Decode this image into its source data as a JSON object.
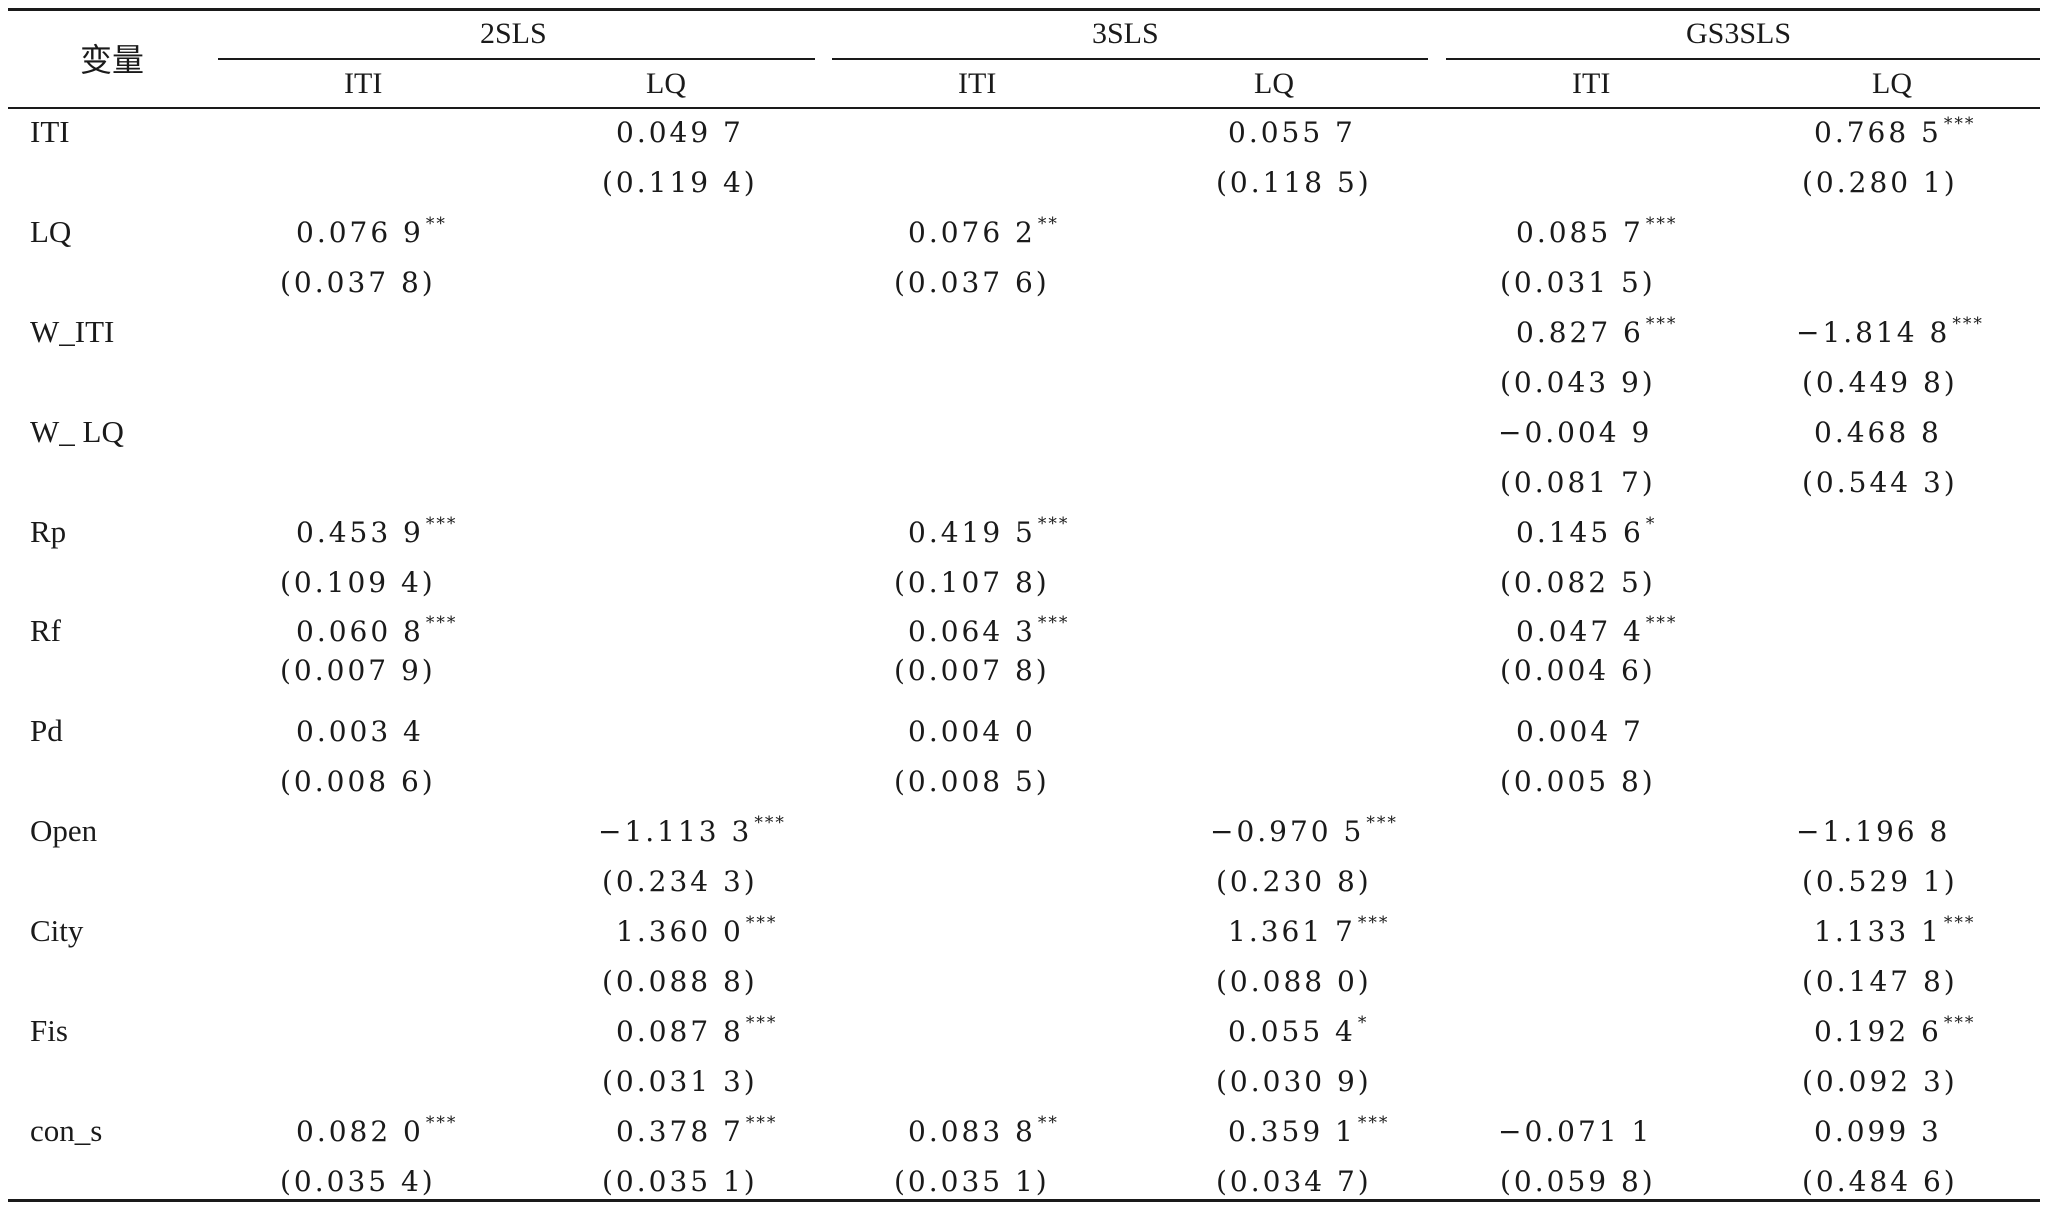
{
  "table": {
    "corner_label": "变量",
    "groups": [
      "2SLS",
      "3SLS",
      "GS3SLS"
    ],
    "subheaders": [
      "ITI",
      "LQ",
      "ITI",
      "LQ",
      "ITI",
      "LQ"
    ],
    "rows": [
      {
        "var": "ITI",
        "coef": [
          "",
          "0.049 7",
          "",
          "0.055 7",
          "",
          "0.768 5"
        ],
        "stars": [
          "",
          "",
          "",
          "",
          "",
          "***"
        ],
        "se": [
          "",
          "(0.119 4)",
          "",
          "(0.118 5)",
          "",
          "(0.280 1)"
        ]
      },
      {
        "var": "LQ",
        "coef": [
          "0.076 9",
          "",
          "0.076 2",
          "",
          "0.085 7",
          ""
        ],
        "stars": [
          "**",
          "",
          "**",
          "",
          "***",
          ""
        ],
        "se": [
          "(0.037 8)",
          "",
          "(0.037 6)",
          "",
          "(0.031 5)",
          ""
        ]
      },
      {
        "var": "W_ITI",
        "coef": [
          "",
          "",
          "",
          "",
          "0.827 6",
          "−1.814 8"
        ],
        "stars": [
          "",
          "",
          "",
          "",
          "***",
          "***"
        ],
        "se": [
          "",
          "",
          "",
          "",
          "(0.043 9)",
          "(0.449 8)"
        ]
      },
      {
        "var": "W_ LQ",
        "coef": [
          "",
          "",
          "",
          "",
          "−0.004 9",
          "0.468 8"
        ],
        "stars": [
          "",
          "",
          "",
          "",
          "",
          ""
        ],
        "se": [
          "",
          "",
          "",
          "",
          "(0.081 7)",
          "(0.544 3)"
        ]
      },
      {
        "var": "Rp",
        "coef": [
          "0.453 9",
          "",
          "0.419 5",
          "",
          "0.145 6",
          ""
        ],
        "stars": [
          "***",
          "",
          "***",
          "",
          "*",
          ""
        ],
        "se": [
          "(0.109 4)",
          "",
          "(0.107 8)",
          "",
          "(0.082 5)",
          ""
        ]
      },
      {
        "var": "Rf",
        "coef": [
          "0.060 8",
          "",
          "0.064 3",
          "",
          "0.047 4",
          ""
        ],
        "stars": [
          "***",
          "",
          "***",
          "",
          "***",
          ""
        ],
        "se": [
          "(0.007 9)",
          "",
          "(0.007 8)",
          "",
          "(0.004 6)",
          ""
        ]
      },
      {
        "var": "Pd",
        "coef": [
          "0.003 4",
          "",
          "0.004 0",
          "",
          "0.004 7",
          ""
        ],
        "stars": [
          "",
          "",
          "",
          "",
          "",
          ""
        ],
        "se": [
          "(0.008 6)",
          "",
          "(0.008 5)",
          "",
          "(0.005 8)",
          ""
        ]
      },
      {
        "var": "Open",
        "coef": [
          "",
          "−1.113 3",
          "",
          "−0.970 5",
          "",
          "−1.196 8"
        ],
        "stars": [
          "",
          "***",
          "",
          "***",
          "",
          ""
        ],
        "se": [
          "",
          "(0.234 3)",
          "",
          "(0.230 8)",
          "",
          "(0.529 1)"
        ]
      },
      {
        "var": "City",
        "coef": [
          "",
          "1.360 0",
          "",
          "1.361 7",
          "",
          "1.133 1"
        ],
        "stars": [
          "",
          "***",
          "",
          "***",
          "",
          "***"
        ],
        "se": [
          "",
          "(0.088 8)",
          "",
          "(0.088 0)",
          "",
          "(0.147 8)"
        ]
      },
      {
        "var": "Fis",
        "coef": [
          "",
          "0.087 8",
          "",
          "0.055 4",
          "",
          "0.192 6"
        ],
        "stars": [
          "",
          "***",
          "",
          "*",
          "",
          "***"
        ],
        "se": [
          "",
          "(0.031 3)",
          "",
          "(0.030 9)",
          "",
          "(0.092 3)"
        ]
      },
      {
        "var": "con_s",
        "coef": [
          "0.082 0",
          "0.378 7",
          "0.083 8",
          "0.359 1",
          "−0.071 1",
          "0.099 3"
        ],
        "stars": [
          "***",
          "***",
          "**",
          "***",
          "",
          ""
        ],
        "se": [
          "(0.035 4)",
          "(0.035 1)",
          "(0.035 1)",
          "(0.034 7)",
          "(0.059 8)",
          "(0.484 6)"
        ]
      }
    ]
  }
}
